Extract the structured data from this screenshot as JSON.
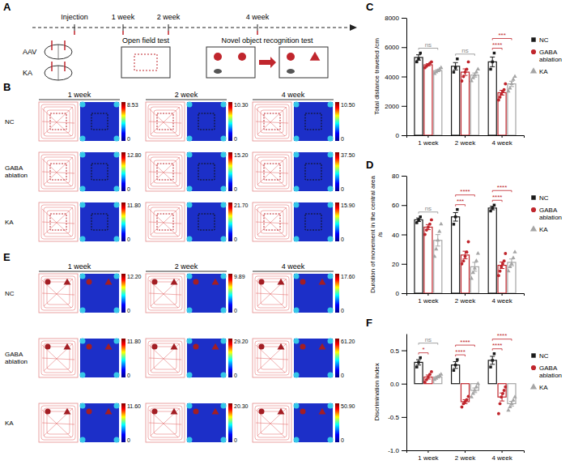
{
  "panel_labels": [
    "A",
    "B",
    "C",
    "D",
    "E",
    "F"
  ],
  "figure": {
    "panel_a": {
      "timeline": [
        "Injection",
        "1 week",
        "2 week",
        "4 week"
      ],
      "injections": [
        "AAV",
        "KA"
      ],
      "tests": [
        "Open field test",
        "Novel object recognition test"
      ]
    },
    "panel_b": {
      "columns": [
        "1 week",
        "2 week",
        "4 week"
      ],
      "rows": [
        "NC",
        "GABA ablation",
        "KA"
      ],
      "colorbar_min": 0,
      "colorbar_max": [
        [
          8.53,
          {
            "value": 10.3,
            "label": "10.30"
          },
          {
            "value": 10.5,
            "label": "10.50"
          }
        ],
        [
          {
            "value": 12.8,
            "label": "12.80"
          },
          {
            "value": 15.2,
            "label": "15.20"
          },
          {
            "value": 37.5,
            "label": "37.50"
          }
        ],
        [
          {
            "value": 11.8,
            "label": "11.80"
          },
          {
            "value": 21.7,
            "label": "21.70"
          },
          {
            "value": 15.9,
            "label": "15.90"
          }
        ]
      ]
    },
    "panel_e": {
      "columns": [
        "1 week",
        "2 week",
        "4 week"
      ],
      "rows": [
        "NC",
        "GABA ablation",
        "KA"
      ],
      "colorbar_min": 0,
      "colorbar_max": [
        [
          {
            "value": 12.2,
            "label": "12.20"
          },
          9.89,
          {
            "value": 17.6,
            "label": "17.60"
          }
        ],
        [
          {
            "value": 11.8,
            "label": "11.80"
          },
          {
            "value": 29.2,
            "label": "29.20"
          },
          {
            "value": 61.2,
            "label": "61.20"
          }
        ],
        [
          {
            "value": 11.6,
            "label": "11.60"
          },
          {
            "value": 20.3,
            "label": "20.30"
          },
          {
            "value": 50.9,
            "label": "50.90"
          }
        ]
      ]
    }
  },
  "chart_data": [
    {
      "type": "bar",
      "y_label": "Total distance traveled /cm",
      "categories": [
        "1 week",
        "2 week",
        "4 week"
      ],
      "ylim": [
        0,
        8000
      ],
      "yticks": [
        0,
        2000,
        4000,
        6000,
        8000
      ],
      "legend": "right",
      "series": [
        {
          "name": "NC",
          "color": "#1a1a1a",
          "marker": "square",
          "values": [
            5300,
            4700,
            5000
          ],
          "errors": [
            180,
            250,
            330
          ],
          "points": [
            [
              5000,
              5200,
              5600
            ],
            [
              4300,
              4600,
              5200
            ],
            [
              4500,
              5000,
              5600
            ]
          ]
        },
        {
          "name": "GABA ablation",
          "color": "#c0262d",
          "marker": "circle",
          "values": [
            4800,
            4300,
            2900
          ],
          "errors": [
            70,
            220,
            160
          ],
          "points": [
            [
              4600,
              4700,
              4800,
              4900,
              5000
            ],
            [
              3700,
              4000,
              4300,
              4500,
              5000
            ],
            [
              2400,
              2600,
              2800,
              3000,
              3100,
              3500
            ]
          ]
        },
        {
          "name": "KA",
          "color": "#a6a6a6",
          "marker": "triangle",
          "values": [
            4400,
            4100,
            3500
          ],
          "errors": [
            70,
            140,
            180
          ],
          "points": [
            [
              4200,
              4300,
              4400,
              4500,
              4600
            ],
            [
              3700,
              3900,
              4100,
              4300,
              4500
            ],
            [
              3000,
              3200,
              3500,
              3800,
              4000
            ]
          ]
        }
      ],
      "annotations": [
        {
          "text": "ns",
          "category": "1 week",
          "between": [
            "NC",
            "KA"
          ],
          "color": "#8c8c8c"
        },
        {
          "text": "ns",
          "category": "2 week",
          "between": [
            "NC",
            "KA"
          ],
          "color": "#8c8c8c"
        },
        {
          "text": "****",
          "category": "4 week",
          "between": [
            "NC",
            "GABA ablation"
          ],
          "color": "#c0262d"
        },
        {
          "text": "***",
          "category": "4 week",
          "between": [
            "NC",
            "KA"
          ],
          "color": "#c0262d"
        }
      ]
    },
    {
      "type": "bar",
      "y_label": "Duration of movement in the central area /s",
      "categories": [
        "1 week",
        "2 week",
        "4 week"
      ],
      "ylim": [
        0,
        80
      ],
      "yticks": [
        0,
        20,
        40,
        60,
        80
      ],
      "legend": "right",
      "series": [
        {
          "name": "NC",
          "color": "#1a1a1a",
          "marker": "square",
          "values": [
            50,
            52,
            58
          ],
          "errors": [
            1.2,
            2.9,
            1.2
          ],
          "points": [
            [
              48,
              50,
              52
            ],
            [
              47,
              52,
              57
            ],
            [
              56,
              58,
              60
            ]
          ]
        },
        {
          "name": "GABA ablation",
          "color": "#c0262d",
          "marker": "circle",
          "values": [
            45,
            26,
            19
          ],
          "errors": [
            1.7,
            2.6,
            2.2
          ],
          "points": [
            [
              40,
              43,
              45,
              47,
              50
            ],
            [
              20,
              22,
              25,
              28,
              35
            ],
            [
              12,
              15,
              18,
              20,
              22,
              27
            ]
          ]
        },
        {
          "name": "KA",
          "color": "#a6a6a6",
          "marker": "triangle",
          "values": [
            36,
            18,
            21
          ],
          "errors": [
            3.9,
            3,
            2.3
          ],
          "points": [
            [
              25,
              30,
              36,
              42,
              47
            ],
            [
              10,
              14,
              17,
              22,
              27
            ],
            [
              15,
              18,
              20,
              24,
              28
            ]
          ]
        }
      ],
      "annotations": [
        {
          "text": "ns",
          "category": "1 week",
          "between": [
            "NC",
            "KA"
          ],
          "color": "#8c8c8c"
        },
        {
          "text": "***",
          "category": "2 week",
          "between": [
            "NC",
            "GABA ablation"
          ],
          "color": "#c0262d"
        },
        {
          "text": "****",
          "category": "2 week",
          "between": [
            "NC",
            "KA"
          ],
          "color": "#c0262d"
        },
        {
          "text": "****",
          "category": "4 week",
          "between": [
            "NC",
            "GABA ablation"
          ],
          "color": "#c0262d"
        },
        {
          "text": "****",
          "category": "4 week",
          "between": [
            "NC",
            "KA"
          ],
          "color": "#c0262d"
        }
      ]
    },
    {
      "type": "bar",
      "y_label": "Discrimination index",
      "categories": [
        "1 week",
        "2 week",
        "4 week"
      ],
      "ylim": [
        -1,
        0.75
      ],
      "yticks": [
        {
          "value": -1,
          "label": "-1.0"
        },
        -0.5,
        {
          "value": 0,
          "label": "0.0"
        },
        0.5
      ],
      "legend": "right",
      "series": [
        {
          "name": "NC",
          "color": "#1a1a1a",
          "marker": "square",
          "values": [
            0.32,
            0.28,
            0.35
          ],
          "errors": [
            0.04,
            0.05,
            0.06
          ],
          "points": [
            [
              0.25,
              0.32,
              0.39
            ],
            [
              0.2,
              0.28,
              0.36
            ],
            [
              0.25,
              0.35,
              0.45
            ]
          ]
        },
        {
          "name": "GABA ablation",
          "color": "#c0262d",
          "marker": "circle",
          "values": [
            0.1,
            -0.27,
            -0.2
          ],
          "errors": [
            0.03,
            0.03,
            0.06
          ],
          "points": [
            [
              0.02,
              0.06,
              0.1,
              0.14,
              0.18
            ],
            [
              -0.35,
              -0.3,
              -0.27,
              -0.24,
              -0.19
            ],
            [
              -0.45,
              -0.3,
              -0.2,
              -0.15,
              -0.1,
              -0.05
            ]
          ]
        },
        {
          "name": "KA",
          "color": "#a6a6a6",
          "marker": "triangle",
          "values": [
            0.1,
            -0.1,
            -0.3
          ],
          "errors": [
            0.015,
            0.035,
            0.035
          ],
          "points": [
            [
              0.06,
              0.08,
              0.1,
              0.12,
              0.14
            ],
            [
              -0.2,
              -0.15,
              -0.1,
              -0.05,
              0
            ],
            [
              -0.4,
              -0.35,
              -0.3,
              -0.25,
              -0.2
            ]
          ]
        }
      ],
      "annotations": [
        {
          "text": "*",
          "category": "1 week",
          "between": [
            "NC",
            "GABA ablation"
          ],
          "color": "#c0262d"
        },
        {
          "text": "ns",
          "category": "1 week",
          "between": [
            "NC",
            "KA"
          ],
          "color": "#8c8c8c"
        },
        {
          "text": "****",
          "category": "2 week",
          "between": [
            "NC",
            "GABA ablation"
          ],
          "color": "#c0262d"
        },
        {
          "text": "****",
          "category": "2 week",
          "between": [
            "NC",
            "KA"
          ],
          "color": "#c0262d"
        },
        {
          "text": "****",
          "category": "4 week",
          "between": [
            "NC",
            "GABA ablation"
          ],
          "color": "#c0262d"
        },
        {
          "text": "****",
          "category": "4 week",
          "between": [
            "NC",
            "KA"
          ],
          "color": "#c0262d"
        }
      ]
    }
  ]
}
